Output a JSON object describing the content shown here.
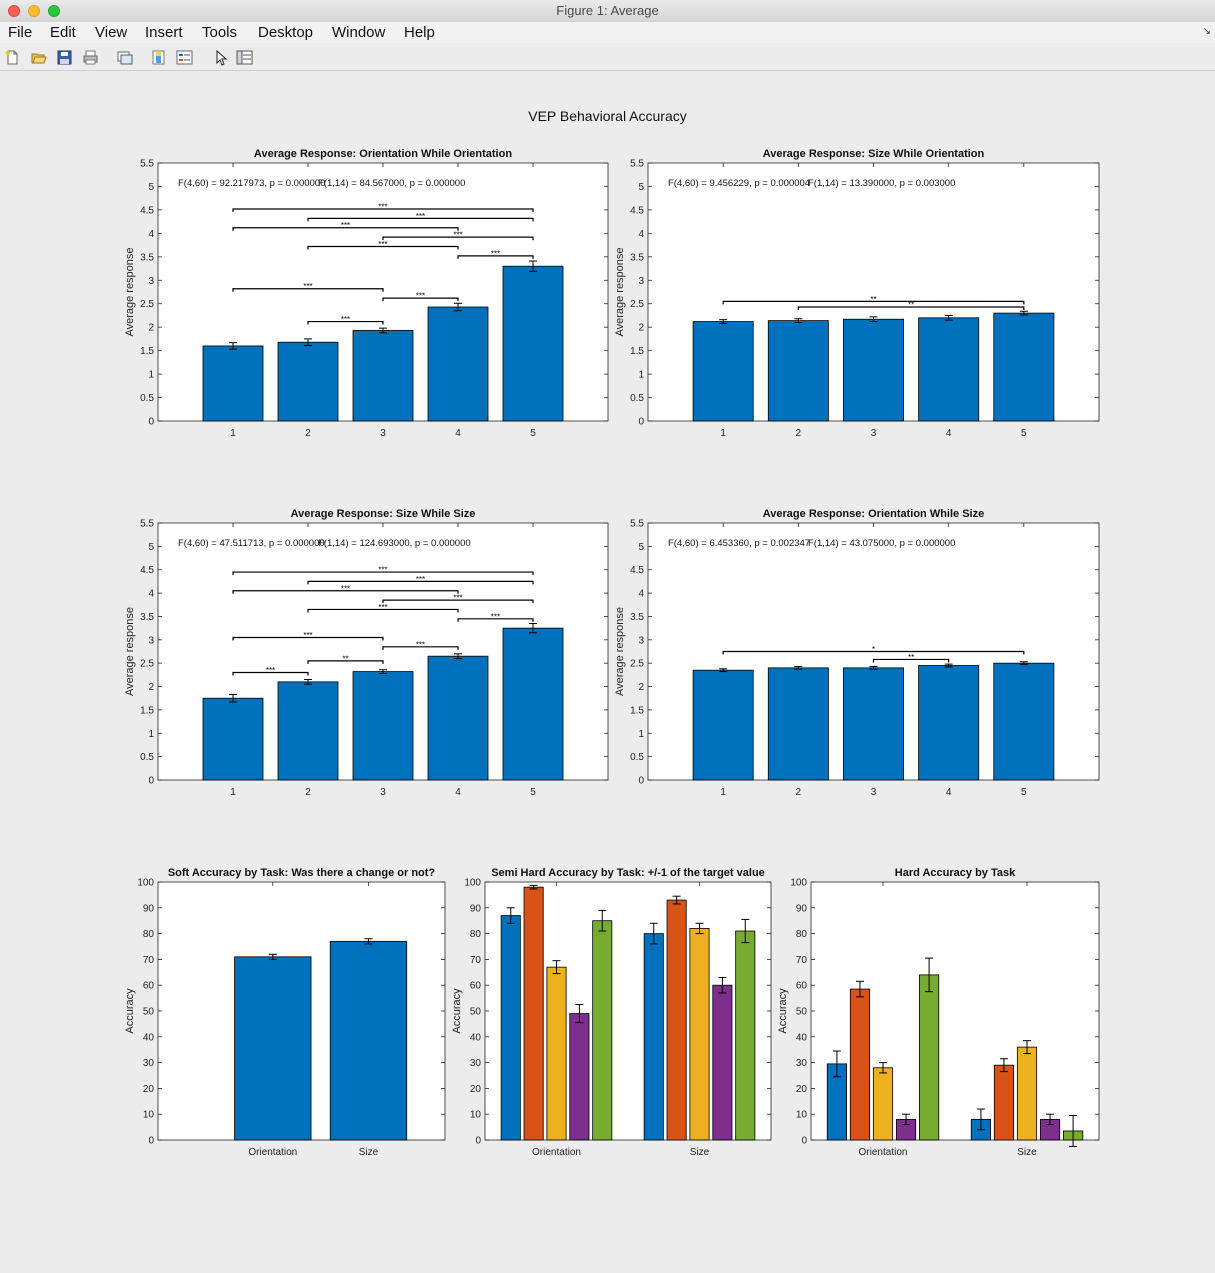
{
  "window": {
    "title": "Figure 1: Average"
  },
  "menu": [
    "File",
    "Edit",
    "View",
    "Insert",
    "Tools",
    "Desktop",
    "Window",
    "Help"
  ],
  "toolbar": [
    "new-figure-icon",
    "open-icon",
    "save-icon",
    "print-icon",
    "link-icon",
    "colorbar-icon",
    "legend-icon",
    "pointer-icon",
    "property-editor-icon"
  ],
  "figure": {
    "title": "VEP Behavioral Accuracy"
  },
  "colors": {
    "blue": "#0072bd",
    "orange": "#d95319",
    "yellow": "#edb120",
    "purple": "#7e2f8e",
    "green": "#77ac30"
  },
  "chart_data": [
    {
      "type": "bar",
      "title": "Average Response: Orientation While Orientation",
      "ylabel": "Average response",
      "xlabel": "",
      "ylim": [
        0,
        5.5
      ],
      "yticks": [
        "0",
        "0.5",
        "1",
        "1.5",
        "2",
        "2.5",
        "3",
        "3.5",
        "4",
        "4.5",
        "5",
        "5.5"
      ],
      "categories": [
        "1",
        "2",
        "3",
        "4",
        "5"
      ],
      "values": [
        1.6,
        1.68,
        1.93,
        2.43,
        3.3
      ],
      "errors": [
        0.07,
        0.07,
        0.05,
        0.08,
        0.11
      ],
      "annotations": [
        "F(4,60) = 92.217973, p = 0.000000",
        "F(1,14) = 84.567000, p = 0.000000"
      ],
      "significance": [
        {
          "from": "1",
          "to": "5",
          "y": 4.52,
          "label": "***"
        },
        {
          "from": "2",
          "to": "5",
          "y": 4.32,
          "label": "***"
        },
        {
          "from": "1",
          "to": "4",
          "y": 4.12,
          "label": "***"
        },
        {
          "from": "3",
          "to": "5",
          "y": 3.92,
          "label": "***"
        },
        {
          "from": "2",
          "to": "4",
          "y": 3.72,
          "label": "***"
        },
        {
          "from": "4",
          "to": "5",
          "y": 3.52,
          "label": "***"
        },
        {
          "from": "1",
          "to": "3",
          "y": 2.82,
          "label": "***"
        },
        {
          "from": "3",
          "to": "4",
          "y": 2.62,
          "label": "***"
        },
        {
          "from": "2",
          "to": "3",
          "y": 2.12,
          "label": "***"
        }
      ]
    },
    {
      "type": "bar",
      "title": "Average Response: Size While Orientation",
      "ylabel": "Average response",
      "xlabel": "",
      "ylim": [
        0,
        5.5
      ],
      "yticks": [
        "0",
        "0.5",
        "1",
        "1.5",
        "2",
        "2.5",
        "3",
        "3.5",
        "4",
        "4.5",
        "5",
        "5.5"
      ],
      "categories": [
        "1",
        "2",
        "3",
        "4",
        "5"
      ],
      "values": [
        2.12,
        2.14,
        2.17,
        2.2,
        2.3
      ],
      "errors": [
        0.04,
        0.04,
        0.05,
        0.05,
        0.04
      ],
      "annotations": [
        "F(4,60) = 9.456229, p = 0.000004",
        "F(1,14) = 13.390000, p = 0.003000"
      ],
      "significance": [
        {
          "from": "1",
          "to": "5",
          "y": 2.55,
          "label": "**"
        },
        {
          "from": "2",
          "to": "5",
          "y": 2.43,
          "label": "**"
        }
      ]
    },
    {
      "type": "bar",
      "title": "Average Response: Size While Size",
      "ylabel": "Average response",
      "xlabel": "",
      "ylim": [
        0,
        5.5
      ],
      "yticks": [
        "0",
        "0.5",
        "1",
        "1.5",
        "2",
        "2.5",
        "3",
        "3.5",
        "4",
        "4.5",
        "5",
        "5.5"
      ],
      "categories": [
        "1",
        "2",
        "3",
        "4",
        "5"
      ],
      "values": [
        1.75,
        2.1,
        2.32,
        2.65,
        3.25
      ],
      "errors": [
        0.08,
        0.05,
        0.04,
        0.05,
        0.1
      ],
      "annotations": [
        "F(4,60) = 47.511713, p = 0.000000",
        "F(1,14) = 124.693000, p = 0.000000"
      ],
      "significance": [
        {
          "from": "1",
          "to": "5",
          "y": 4.45,
          "label": "***"
        },
        {
          "from": "2",
          "to": "5",
          "y": 4.25,
          "label": "***"
        },
        {
          "from": "1",
          "to": "4",
          "y": 4.05,
          "label": "***"
        },
        {
          "from": "3",
          "to": "5",
          "y": 3.85,
          "label": "***"
        },
        {
          "from": "2",
          "to": "4",
          "y": 3.65,
          "label": "***"
        },
        {
          "from": "4",
          "to": "5",
          "y": 3.45,
          "label": "***"
        },
        {
          "from": "1",
          "to": "3",
          "y": 3.05,
          "label": "***"
        },
        {
          "from": "3",
          "to": "4",
          "y": 2.85,
          "label": "***"
        },
        {
          "from": "2",
          "to": "3",
          "y": 2.55,
          "label": "**"
        },
        {
          "from": "1",
          "to": "2",
          "y": 2.3,
          "label": "***"
        }
      ]
    },
    {
      "type": "bar",
      "title": "Average Response: Orientation While Size",
      "ylabel": "Average response",
      "xlabel": "",
      "ylim": [
        0,
        5.5
      ],
      "yticks": [
        "0",
        "0.5",
        "1",
        "1.5",
        "2",
        "2.5",
        "3",
        "3.5",
        "4",
        "4.5",
        "5",
        "5.5"
      ],
      "categories": [
        "1",
        "2",
        "3",
        "4",
        "5"
      ],
      "values": [
        2.35,
        2.4,
        2.4,
        2.45,
        2.5
      ],
      "errors": [
        0.03,
        0.03,
        0.03,
        0.03,
        0.03
      ],
      "annotations": [
        "F(4,60) = 6.453360, p = 0.002347",
        "F(1,14) = 43.075000, p = 0.000000"
      ],
      "significance": [
        {
          "from": "1",
          "to": "5",
          "y": 2.75,
          "label": "*"
        },
        {
          "from": "3",
          "to": "4",
          "y": 2.58,
          "label": "**"
        }
      ]
    },
    {
      "type": "bar",
      "title": "Soft Accuracy by Task: Was there a change or not?",
      "ylabel": "Accuracy",
      "xlabel": "",
      "ylim": [
        0,
        100
      ],
      "yticks": [
        "0",
        "10",
        "20",
        "30",
        "40",
        "50",
        "60",
        "70",
        "80",
        "90",
        "100"
      ],
      "categories": [
        "Orientation",
        "Size"
      ],
      "values": [
        71,
        77
      ],
      "errors": [
        1,
        1
      ]
    },
    {
      "type": "bar",
      "title": "Semi Hard Accuracy by Task: +/-1 of the target value",
      "ylabel": "Accuracy",
      "xlabel": "",
      "ylim": [
        0,
        100
      ],
      "yticks": [
        "0",
        "10",
        "20",
        "30",
        "40",
        "50",
        "60",
        "70",
        "80",
        "90",
        "100"
      ],
      "categories": [
        "Orientation",
        "Size"
      ],
      "series": [
        {
          "values": [
            87,
            80
          ],
          "errors": [
            3,
            4
          ]
        },
        {
          "values": [
            98,
            93
          ],
          "errors": [
            0.7,
            1.5
          ]
        },
        {
          "values": [
            67,
            82
          ],
          "errors": [
            2.5,
            2
          ]
        },
        {
          "values": [
            49,
            60
          ],
          "errors": [
            3.5,
            3
          ]
        },
        {
          "values": [
            85,
            81
          ],
          "errors": [
            4,
            4.5
          ]
        }
      ]
    },
    {
      "type": "bar",
      "title": "Hard Accuracy by Task",
      "ylabel": "Accuracy",
      "xlabel": "",
      "ylim": [
        0,
        100
      ],
      "yticks": [
        "0",
        "10",
        "20",
        "30",
        "40",
        "50",
        "60",
        "70",
        "80",
        "90",
        "100"
      ],
      "categories": [
        "Orientation",
        "Size"
      ],
      "series": [
        {
          "values": [
            29.5,
            8
          ],
          "errors": [
            5,
            4
          ]
        },
        {
          "values": [
            58.5,
            29
          ],
          "errors": [
            3,
            2.5
          ]
        },
        {
          "values": [
            28,
            36
          ],
          "errors": [
            2,
            2.5
          ]
        },
        {
          "values": [
            8,
            8
          ],
          "errors": [
            2,
            2
          ]
        },
        {
          "values": [
            64,
            3.5
          ],
          "errors": [
            6.5,
            6
          ]
        }
      ]
    }
  ]
}
